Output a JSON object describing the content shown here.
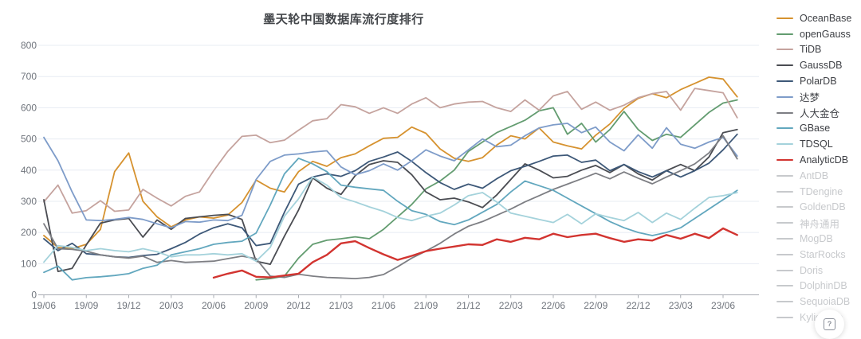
{
  "page": {
    "background": "#ffffff"
  },
  "help_button": {
    "icon": "?"
  },
  "colors": {
    "legend_disabled": "#C7C9CC",
    "legend_text": "#3E4045",
    "grid_line": "#E7ECF3",
    "axis_line": "#A8ACB3",
    "axis_text": "#6F747C",
    "title_text": "#44474B"
  },
  "chart_data": {
    "type": "line",
    "title": "墨天轮中国数据库流行度排行",
    "xlabel": "",
    "ylabel": "",
    "ylim": [
      0,
      800
    ],
    "y_ticks": [
      0,
      100,
      200,
      300,
      400,
      500,
      600,
      700,
      800
    ],
    "grid": true,
    "legend_position": "right",
    "x": [
      "19/06",
      "19/07",
      "19/08",
      "19/09",
      "19/10",
      "19/11",
      "19/12",
      "20/01",
      "20/02",
      "20/03",
      "20/04",
      "20/05",
      "20/06",
      "20/07",
      "20/08",
      "20/09",
      "20/10",
      "20/11",
      "20/12",
      "21/01",
      "21/02",
      "21/03",
      "21/04",
      "21/05",
      "21/06",
      "21/07",
      "21/08",
      "21/09",
      "21/10",
      "21/11",
      "21/12",
      "22/01",
      "22/02",
      "22/03",
      "22/04",
      "22/05",
      "22/06",
      "22/07",
      "22/08",
      "22/09",
      "22/10",
      "22/11",
      "22/12",
      "23/01",
      "23/02",
      "23/03",
      "23/04",
      "23/05",
      "23/06",
      "23/07"
    ],
    "x_tick_labels": [
      "19/06",
      "19/09",
      "19/12",
      "20/03",
      "20/06",
      "20/09",
      "20/12",
      "21/03",
      "21/06",
      "21/09",
      "21/12",
      "22/03",
      "22/06",
      "22/09",
      "22/12",
      "23/03",
      "23/06"
    ],
    "series": [
      {
        "name": "OceanBase",
        "slug": "oceanbase",
        "color": "#D6922F",
        "values": [
          190,
          152,
          148,
          162,
          210,
          395,
          455,
          300,
          250,
          218,
          240,
          250,
          246,
          256,
          296,
          368,
          342,
          330,
          395,
          428,
          412,
          440,
          452,
          478,
          502,
          505,
          538,
          518,
          468,
          438,
          428,
          440,
          480,
          510,
          500,
          535,
          490,
          478,
          468,
          512,
          548,
          598,
          630,
          645,
          632,
          658,
          678,
          698,
          692,
          635
        ]
      },
      {
        "name": "openGauss",
        "slug": "opengauss",
        "color": "#639C70",
        "values": [
          null,
          null,
          null,
          null,
          null,
          null,
          null,
          null,
          null,
          null,
          null,
          null,
          null,
          null,
          null,
          48,
          52,
          60,
          118,
          162,
          175,
          180,
          186,
          180,
          210,
          250,
          290,
          340,
          365,
          400,
          460,
          490,
          520,
          540,
          560,
          590,
          600,
          515,
          550,
          490,
          530,
          588,
          530,
          495,
          515,
          505,
          545,
          585,
          615,
          625
        ]
      },
      {
        "name": "TiDB",
        "slug": "tidb",
        "color": "#C5A39E",
        "values": [
          298,
          352,
          262,
          270,
          302,
          268,
          272,
          338,
          310,
          285,
          316,
          330,
          398,
          460,
          508,
          512,
          488,
          496,
          528,
          558,
          565,
          610,
          603,
          582,
          600,
          582,
          612,
          632,
          600,
          612,
          618,
          620,
          600,
          588,
          625,
          592,
          638,
          652,
          595,
          618,
          592,
          608,
          632,
          645,
          652,
          592,
          662,
          655,
          648,
          568
        ]
      },
      {
        "name": "GaussDB",
        "slug": "gaussdb",
        "color": "#4A4C52",
        "values": [
          305,
          75,
          85,
          160,
          230,
          240,
          245,
          185,
          240,
          210,
          245,
          250,
          255,
          258,
          242,
          108,
          98,
          188,
          272,
          375,
          342,
          322,
          382,
          418,
          430,
          425,
          385,
          330,
          305,
          310,
          298,
          280,
          320,
          370,
          420,
          400,
          375,
          380,
          400,
          415,
          392,
          418,
          388,
          368,
          398,
          418,
          398,
          442,
          520,
          530
        ]
      },
      {
        "name": "PolarDB",
        "slug": "polardb",
        "color": "#3D5878",
        "values": [
          180,
          142,
          165,
          132,
          128,
          122,
          120,
          126,
          130,
          148,
          168,
          195,
          215,
          228,
          215,
          158,
          165,
          265,
          355,
          378,
          388,
          380,
          398,
          428,
          442,
          458,
          428,
          392,
          360,
          338,
          355,
          342,
          372,
          398,
          412,
          428,
          445,
          448,
          425,
          432,
          398,
          418,
          395,
          378,
          398,
          378,
          398,
          422,
          465,
          515
        ]
      },
      {
        "name": "达梦",
        "slug": "dameng",
        "color": "#7E9CC9",
        "values": [
          505,
          430,
          330,
          240,
          238,
          242,
          248,
          242,
          228,
          215,
          235,
          233,
          240,
          238,
          255,
          370,
          428,
          448,
          452,
          458,
          462,
          410,
          385,
          398,
          420,
          400,
          430,
          465,
          445,
          430,
          465,
          500,
          475,
          480,
          510,
          535,
          545,
          550,
          520,
          538,
          490,
          462,
          513,
          470,
          536,
          483,
          470,
          490,
          505,
          445
        ]
      },
      {
        "name": "人大金仓",
        "slug": "kingbase",
        "color": "#7D7E83",
        "values": [
          228,
          148,
          146,
          140,
          128,
          122,
          118,
          124,
          104,
          110,
          104,
          106,
          108,
          116,
          124,
          116,
          60,
          56,
          66,
          60,
          56,
          54,
          52,
          56,
          65,
          90,
          118,
          140,
          165,
          195,
          220,
          235,
          255,
          275,
          298,
          318,
          338,
          355,
          372,
          390,
          372,
          394,
          374,
          356,
          378,
          398,
          420,
          455,
          510,
          436
        ]
      },
      {
        "name": "GBase",
        "slug": "gbase",
        "color": "#62A7BE",
        "values": [
          72,
          92,
          48,
          55,
          58,
          62,
          68,
          85,
          95,
          128,
          138,
          148,
          162,
          168,
          172,
          198,
          288,
          388,
          438,
          420,
          395,
          352,
          345,
          340,
          335,
          300,
          270,
          258,
          235,
          225,
          240,
          265,
          290,
          330,
          365,
          350,
          335,
          310,
          285,
          260,
          235,
          215,
          200,
          190,
          200,
          215,
          245,
          275,
          305,
          335
        ]
      },
      {
        "name": "TDSQL",
        "slug": "tdsql",
        "color": "#A4D2DB",
        "values": [
          105,
          158,
          152,
          142,
          148,
          142,
          138,
          148,
          138,
          122,
          128,
          128,
          132,
          128,
          132,
          108,
          152,
          252,
          308,
          378,
          352,
          312,
          298,
          282,
          268,
          248,
          238,
          252,
          262,
          288,
          318,
          328,
          298,
          262,
          252,
          242,
          232,
          258,
          228,
          260,
          248,
          238,
          264,
          232,
          262,
          242,
          278,
          312,
          318,
          328
        ]
      },
      {
        "name": "AnalyticDB",
        "slug": "analyticdb",
        "color": "#D23430",
        "width": 2.4,
        "values": [
          null,
          null,
          null,
          null,
          null,
          null,
          null,
          null,
          null,
          null,
          null,
          null,
          55,
          68,
          78,
          58,
          56,
          62,
          68,
          105,
          128,
          165,
          172,
          150,
          130,
          112,
          125,
          140,
          148,
          155,
          162,
          160,
          178,
          170,
          183,
          178,
          196,
          185,
          192,
          196,
          182,
          170,
          178,
          174,
          192,
          180,
          196,
          182,
          213,
          192
        ]
      }
    ],
    "disabled_series": [
      {
        "name": "AntDB",
        "slug": "antdb"
      },
      {
        "name": "TDengine",
        "slug": "tdengine"
      },
      {
        "name": "GoldenDB",
        "slug": "goldendb"
      },
      {
        "name": "神舟通用",
        "slug": "shenzhou-general"
      },
      {
        "name": "MogDB",
        "slug": "mogdb"
      },
      {
        "name": "StarRocks",
        "slug": "starrocks"
      },
      {
        "name": "Doris",
        "slug": "doris"
      },
      {
        "name": "DolphinDB",
        "slug": "dolphindb"
      },
      {
        "name": "SequoiaDB",
        "slug": "sequoiadb"
      },
      {
        "name": "Kyligence",
        "slug": "kyligence"
      }
    ]
  }
}
